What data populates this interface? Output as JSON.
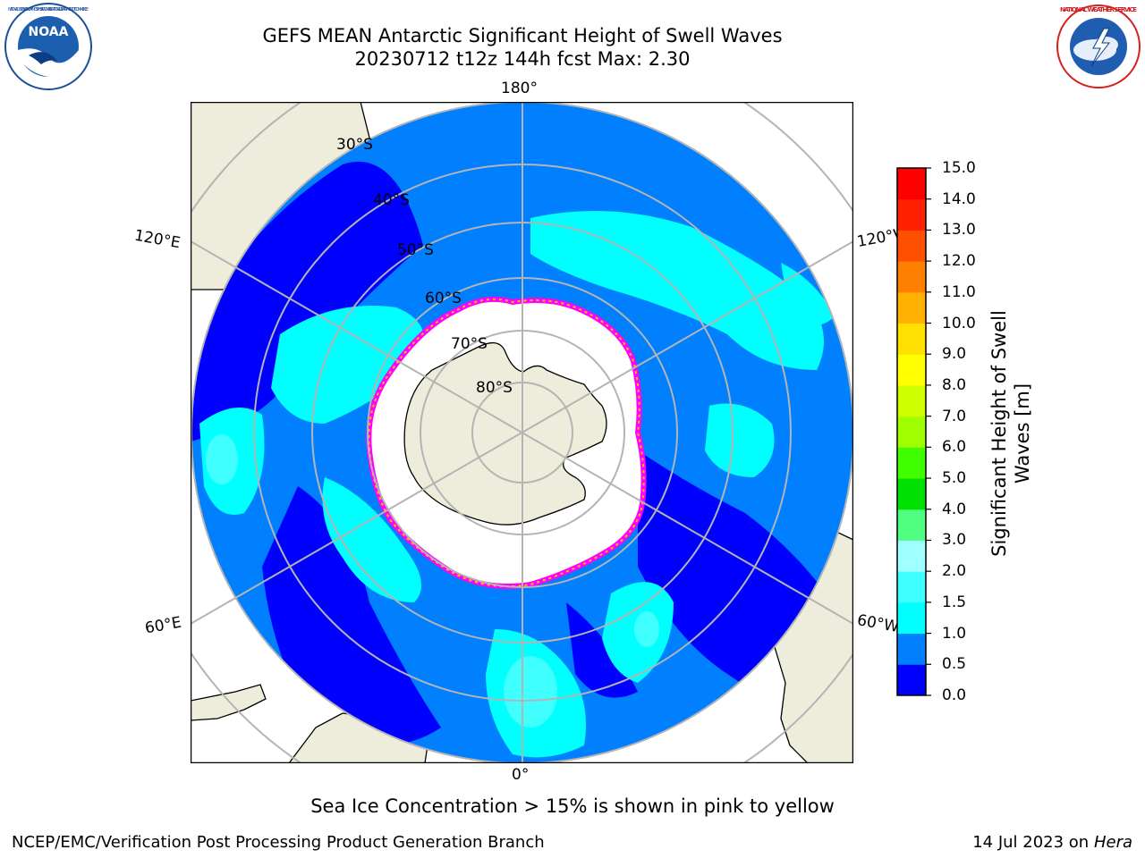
{
  "header": {
    "title_line1": "GEFS MEAN Antarctic Significant Height of Swell Waves",
    "title_line2": "20230712 t12z 144h fcst   Max: 2.30"
  },
  "logos": {
    "noaa": {
      "icon": "noaa-logo",
      "text": "NOAA",
      "ring_text": "NATIONAL OCEANIC AND ATMOSPHERIC ADMINISTRATION · U.S. DEPARTMENT OF COMMERCE"
    },
    "nws": {
      "icon": "nws-logo",
      "ring_text": "NATIONAL WEATHER SERVICE"
    }
  },
  "map": {
    "projection": "south polar stereographic",
    "longitude_labels": {
      "top": "180°",
      "bottom": "0°",
      "left_upper": "120°E",
      "left_lower": "60°E",
      "right_upper": "120°W",
      "right_lower": "60°W"
    },
    "latitude_labels": [
      "30°S",
      "40°S",
      "50°S",
      "60°S",
      "70°S",
      "80°S"
    ],
    "colors": {
      "land": "#eeecda",
      "sea_ice_core": "#ffffff",
      "sea_ice_edge": [
        "#ff00ff",
        "#ff80c0",
        "#ffc000"
      ],
      "gridline": "#b4b4b4"
    }
  },
  "colorbar": {
    "label": "Significant Height of Swell Waves [m]",
    "ticks": [
      "0.0",
      "0.5",
      "1.0",
      "1.5",
      "2.0",
      "3.0",
      "4.0",
      "5.0",
      "6.0",
      "7.0",
      "8.0",
      "9.0",
      "10.0",
      "11.0",
      "12.0",
      "13.0",
      "14.0",
      "15.0"
    ],
    "colors": [
      "#0000ff",
      "#0080ff",
      "#00ffff",
      "#40ffff",
      "#a0ffff",
      "#50ff80",
      "#00e000",
      "#40ff00",
      "#a0ff00",
      "#d0ff00",
      "#ffff00",
      "#ffe000",
      "#ffb000",
      "#ff8000",
      "#ff5000",
      "#ff2000",
      "#ff0000"
    ]
  },
  "note": "Sea Ice Concentration > 15% is shown in pink to yellow",
  "footer": {
    "left": "NCEP/EMC/Verification Post Processing Product Generation Branch",
    "right_prefix": "14 Jul 2023 on ",
    "right_host": "Hera"
  }
}
